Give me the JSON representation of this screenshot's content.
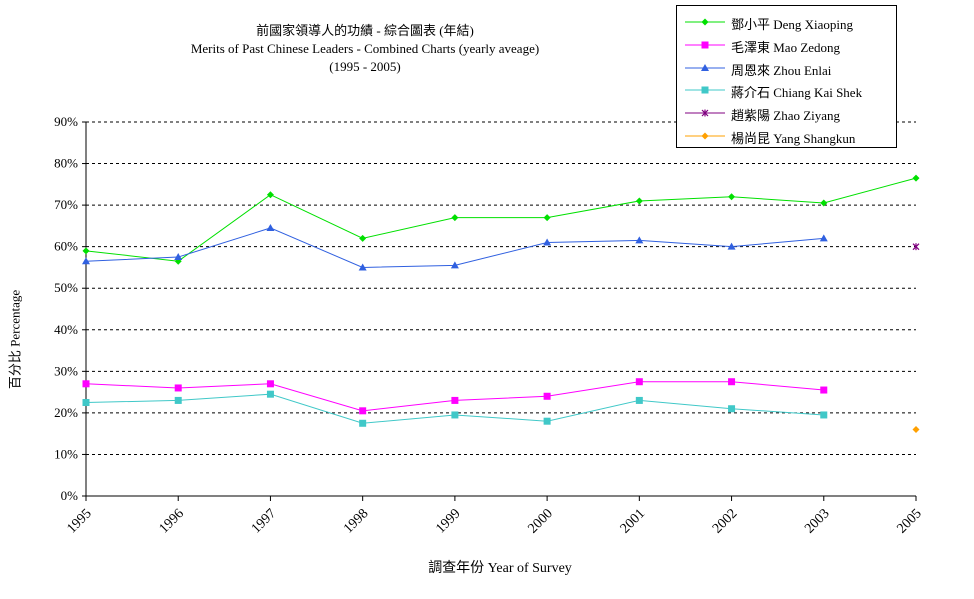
{
  "chart_data": {
    "type": "line",
    "title": "前國家領導人的功績 - 綜合圖表 (年結)",
    "subtitle": "Merits of Past Chinese Leaders - Combined Charts (yearly aveage)",
    "subtitle2": "(1995 - 2005)",
    "xlabel": "調查年份 Year of Survey",
    "ylabel": "百分比 Percentage",
    "categories": [
      "1995",
      "1996",
      "1997",
      "1998",
      "1999",
      "2000",
      "2001",
      "2002",
      "2003",
      "2005"
    ],
    "yticks": [
      "0%",
      "10%",
      "20%",
      "30%",
      "40%",
      "50%",
      "60%",
      "70%",
      "80%",
      "90%"
    ],
    "ylim": [
      0,
      90
    ],
    "grid": "horizontal dashed",
    "legend_position": "top-right",
    "series": [
      {
        "name": "鄧小平 Deng Xiaoping",
        "color": "#00e000",
        "marker": "diamond",
        "values": [
          59,
          56.5,
          72.5,
          62,
          67,
          67,
          71,
          72,
          70.5,
          76.5
        ]
      },
      {
        "name": "毛澤東 Mao Zedong",
        "color": "#ff00ff",
        "marker": "square",
        "values": [
          27,
          26,
          27,
          20.5,
          23,
          24,
          27.5,
          27.5,
          25.5,
          null
        ]
      },
      {
        "name": "周恩來 Zhou Enlai",
        "color": "#3060e0",
        "marker": "triangle",
        "values": [
          56.5,
          57.5,
          64.5,
          55,
          55.5,
          61,
          61.5,
          60,
          62,
          null
        ]
      },
      {
        "name": "蔣介石 Chiang Kai Shek",
        "color": "#40c8c8",
        "marker": "square",
        "values": [
          22.5,
          23,
          24.5,
          17.5,
          19.5,
          18,
          23,
          21,
          19.5,
          null
        ]
      },
      {
        "name": "趙紫陽 Zhao Ziyang",
        "color": "#800080",
        "marker": "star",
        "values": [
          null,
          null,
          null,
          null,
          null,
          null,
          null,
          null,
          null,
          60
        ]
      },
      {
        "name": "楊尚昆 Yang Shangkun",
        "color": "#ffa000",
        "marker": "diamond",
        "values": [
          null,
          null,
          null,
          null,
          null,
          null,
          null,
          null,
          null,
          16
        ]
      }
    ]
  }
}
